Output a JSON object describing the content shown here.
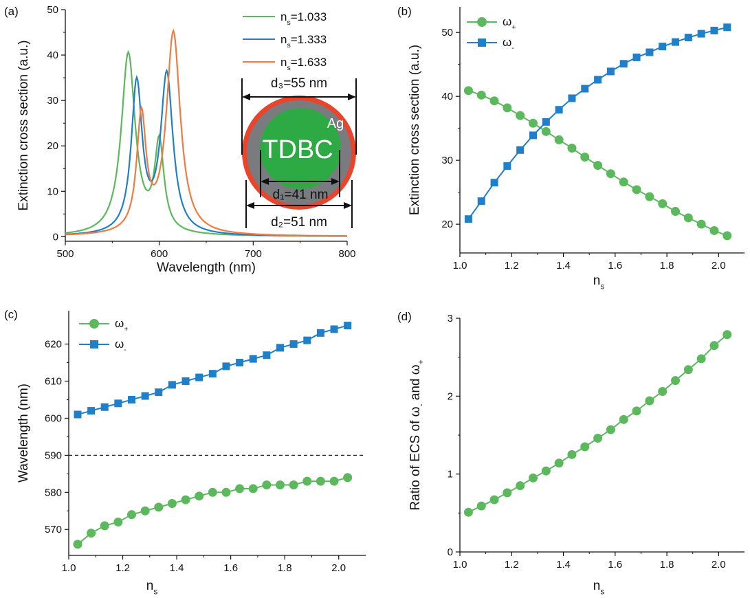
{
  "colors": {
    "green": "#5cb85c",
    "blue": "#1f7fc8",
    "orange": "#f07a40",
    "axis": "#111111",
    "shell_red": "#e8452c",
    "shell_gray": "#7a7b7e",
    "core_green": "#2eaa45"
  },
  "chart_data": [
    {
      "id": "a",
      "type": "line",
      "panel_label": "(a)",
      "xlabel": "Wavelength (nm)",
      "ylabel": "Extinction cross section (a.u.)",
      "xlim": [
        500,
        800
      ],
      "ylim": [
        -1,
        50
      ],
      "xticks": [
        500,
        600,
        700,
        800
      ],
      "yticks": [
        0,
        10,
        20,
        30,
        40,
        50
      ],
      "legend_position": "top-right",
      "series": [
        {
          "name": "n",
          "sub": "s",
          "suffix": "=1.033",
          "color": "green",
          "peaks": [
            {
              "center": 567,
              "amp": 40.0,
              "hw": 9
            },
            {
              "center": 600,
              "amp": 19.5,
              "hw": 6
            }
          ],
          "baseline": 0.05
        },
        {
          "name": "n",
          "sub": "s",
          "suffix": "=1.333",
          "color": "blue",
          "peaks": [
            {
              "center": 576,
              "amp": 33.0,
              "hw": 7
            },
            {
              "center": 608,
              "amp": 35.0,
              "hw": 8
            }
          ],
          "baseline": 0.05
        },
        {
          "name": "n",
          "sub": "s",
          "suffix": "=1.633",
          "color": "orange",
          "peaks": [
            {
              "center": 581,
              "amp": 25.5,
              "hw": 6
            },
            {
              "center": 615,
              "amp": 44.5,
              "hw": 9
            }
          ],
          "baseline": 0.05
        }
      ],
      "inset": {
        "core_label": "TDBC",
        "shell_label": "Ag",
        "d3_label": "d₃=55 nm",
        "d1_label": "d₁=41 nm",
        "d2_label": "d₂=51 nm"
      }
    },
    {
      "id": "b",
      "type": "line",
      "panel_label": "(b)",
      "xlabel": "n",
      "xlabel_sub": "s",
      "ylabel": "Extinction cross section (a.u.)",
      "xlim": [
        1.0,
        2.1
      ],
      "ylim": [
        15.5,
        54
      ],
      "xticks": [
        1.0,
        1.2,
        1.4,
        1.6,
        1.8,
        2.0
      ],
      "yticks": [
        20,
        30,
        40,
        50
      ],
      "legend_position": "top-left",
      "x": [
        1.033,
        1.083,
        1.133,
        1.183,
        1.233,
        1.283,
        1.333,
        1.383,
        1.433,
        1.483,
        1.533,
        1.583,
        1.633,
        1.683,
        1.733,
        1.783,
        1.833,
        1.883,
        1.933,
        1.983,
        2.033
      ],
      "series": [
        {
          "name": "ω",
          "sub": "+",
          "color": "green",
          "marker": "circle",
          "values": [
            40.9,
            40.2,
            39.3,
            38.2,
            37.0,
            35.8,
            34.5,
            33.2,
            31.9,
            30.5,
            29.2,
            27.9,
            26.6,
            25.4,
            24.3,
            23.2,
            22.0,
            21.0,
            20.0,
            19.0,
            18.2
          ]
        },
        {
          "name": "ω",
          "sub": "-",
          "color": "blue",
          "marker": "square",
          "values": [
            20.8,
            23.6,
            26.5,
            29.1,
            31.6,
            33.9,
            36.0,
            37.9,
            39.7,
            41.2,
            42.6,
            43.9,
            45.1,
            46.1,
            46.9,
            47.8,
            48.5,
            49.2,
            49.8,
            50.3,
            50.8
          ]
        }
      ]
    },
    {
      "id": "c",
      "type": "line",
      "panel_label": "(c)",
      "xlabel": "n",
      "xlabel_sub": "s",
      "ylabel": "Wavelength (nm)",
      "xlim": [
        1.0,
        2.1
      ],
      "ylim": [
        563,
        629
      ],
      "xticks": [
        1.0,
        1.2,
        1.4,
        1.6,
        1.8,
        2.0
      ],
      "yticks": [
        570,
        580,
        590,
        600,
        610,
        620
      ],
      "legend_position": "top-left",
      "reference_line": 590,
      "x": [
        1.033,
        1.083,
        1.133,
        1.183,
        1.233,
        1.283,
        1.333,
        1.383,
        1.433,
        1.483,
        1.533,
        1.583,
        1.633,
        1.683,
        1.733,
        1.783,
        1.833,
        1.883,
        1.933,
        1.983,
        2.033
      ],
      "series": [
        {
          "name": "ω",
          "sub": "+",
          "color": "green",
          "marker": "circle",
          "values": [
            566,
            569,
            571,
            572,
            574,
            575,
            576,
            577,
            578,
            579,
            580,
            580,
            581,
            581,
            582,
            582,
            582,
            583,
            583,
            583,
            584
          ]
        },
        {
          "name": "ω",
          "sub": "-",
          "color": "blue",
          "marker": "square",
          "values": [
            601,
            602,
            603,
            604,
            605,
            606,
            607,
            609,
            610,
            611,
            612,
            614,
            615,
            616,
            617,
            619,
            620,
            621,
            623,
            624,
            625
          ]
        }
      ]
    },
    {
      "id": "d",
      "type": "line",
      "panel_label": "(d)",
      "xlabel": "n",
      "xlabel_sub": "s",
      "ylabel": "Ratio of ECS of ω",
      "ylabel_sub1": "-",
      "ylabel_mid": " and ω",
      "ylabel_sub2": "+",
      "xlim": [
        1.0,
        2.1
      ],
      "ylim": [
        0,
        3
      ],
      "xticks": [
        1.0,
        1.2,
        1.4,
        1.6,
        1.8,
        2.0
      ],
      "yticks": [
        0,
        1,
        2,
        3
      ],
      "x": [
        1.033,
        1.083,
        1.133,
        1.183,
        1.233,
        1.283,
        1.333,
        1.383,
        1.433,
        1.483,
        1.533,
        1.583,
        1.633,
        1.683,
        1.733,
        1.783,
        1.833,
        1.883,
        1.933,
        1.983,
        2.033
      ],
      "series": [
        {
          "color": "green",
          "marker": "circle",
          "values": [
            0.51,
            0.59,
            0.67,
            0.76,
            0.85,
            0.95,
            1.04,
            1.14,
            1.25,
            1.35,
            1.46,
            1.57,
            1.7,
            1.81,
            1.94,
            2.06,
            2.2,
            2.34,
            2.48,
            2.65,
            2.79
          ]
        }
      ]
    }
  ]
}
